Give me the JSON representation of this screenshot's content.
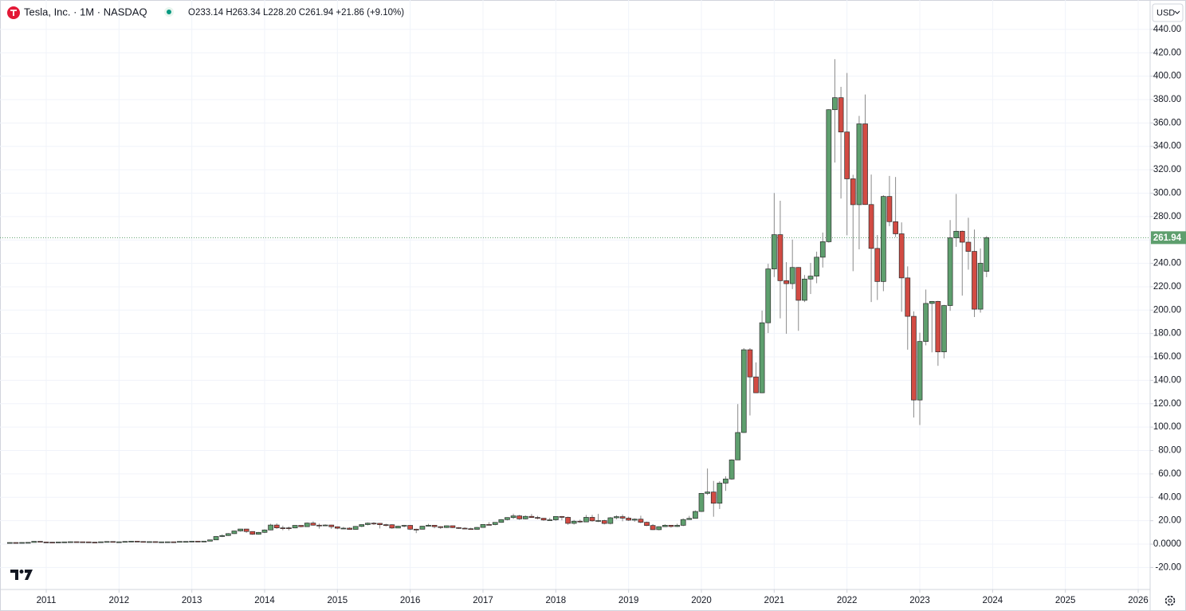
{
  "chart_data": {
    "type": "candlestick",
    "title": "Tesla, Inc. · 1M · NASDAQ",
    "ohlc_legend": "O233.14 H263.34 L228.20 C261.94 +21.86 (+9.10%)",
    "currency": "USD",
    "up_color": "#5e9f6e",
    "down_color": "#d24b43",
    "grid": true,
    "xlim": [
      2010.365,
      2026.164
    ],
    "xticks": [
      2011,
      2012,
      2013,
      2014,
      2015,
      2016,
      2017,
      2018,
      2019,
      2020,
      2021,
      2022,
      2023,
      2024,
      2025,
      2026
    ],
    "ylim": [
      -38.8,
      465.1
    ],
    "yticks": [
      {
        "value": -20,
        "label": "-20.00"
      },
      {
        "value": 0,
        "label": "0.0000"
      },
      {
        "value": 20,
        "label": "20.00"
      },
      {
        "value": 40,
        "label": "40.00"
      },
      {
        "value": 60,
        "label": "60.00"
      },
      {
        "value": 80,
        "label": "80.00"
      },
      {
        "value": 100,
        "label": "100.00"
      },
      {
        "value": 120,
        "label": "120.00"
      },
      {
        "value": 140,
        "label": "140.00"
      },
      {
        "value": 160,
        "label": "160.00"
      },
      {
        "value": 180,
        "label": "180.00"
      },
      {
        "value": 200,
        "label": "200.00"
      },
      {
        "value": 220,
        "label": "220.00"
      },
      {
        "value": 240,
        "label": "240.00"
      },
      {
        "value": 260,
        "label": "260.00"
      },
      {
        "value": 280,
        "label": "280.00"
      },
      {
        "value": 300,
        "label": "300.00"
      },
      {
        "value": 320,
        "label": "320.00"
      },
      {
        "value": 340,
        "label": "340.00"
      },
      {
        "value": 360,
        "label": "360.00"
      },
      {
        "value": 380,
        "label": "380.00"
      },
      {
        "value": 400,
        "label": "400.00"
      },
      {
        "value": 420,
        "label": "420.00"
      },
      {
        "value": 440,
        "label": "440.00"
      }
    ],
    "x": [
      2010.5,
      2010.583,
      2010.667,
      2010.75,
      2010.833,
      2010.917,
      2011,
      2011.083,
      2011.167,
      2011.25,
      2011.333,
      2011.417,
      2011.5,
      2011.583,
      2011.667,
      2011.75,
      2011.833,
      2011.917,
      2012,
      2012.083,
      2012.167,
      2012.25,
      2012.333,
      2012.417,
      2012.5,
      2012.583,
      2012.667,
      2012.75,
      2012.833,
      2012.917,
      2013,
      2013.083,
      2013.167,
      2013.25,
      2013.333,
      2013.417,
      2013.5,
      2013.583,
      2013.667,
      2013.75,
      2013.833,
      2013.917,
      2014,
      2014.083,
      2014.167,
      2014.25,
      2014.333,
      2014.417,
      2014.5,
      2014.583,
      2014.667,
      2014.75,
      2014.833,
      2014.917,
      2015,
      2015.083,
      2015.167,
      2015.25,
      2015.333,
      2015.417,
      2015.5,
      2015.583,
      2015.667,
      2015.75,
      2015.833,
      2015.917,
      2016,
      2016.083,
      2016.167,
      2016.25,
      2016.333,
      2016.417,
      2016.5,
      2016.583,
      2016.667,
      2016.75,
      2016.833,
      2016.917,
      2017,
      2017.083,
      2017.167,
      2017.25,
      2017.333,
      2017.417,
      2017.5,
      2017.583,
      2017.667,
      2017.75,
      2017.833,
      2017.917,
      2018,
      2018.083,
      2018.167,
      2018.25,
      2018.333,
      2018.417,
      2018.5,
      2018.583,
      2018.667,
      2018.75,
      2018.833,
      2018.917,
      2019,
      2019.083,
      2019.167,
      2019.25,
      2019.333,
      2019.417,
      2019.5,
      2019.583,
      2019.667,
      2019.75,
      2019.833,
      2019.917,
      2020,
      2020.083,
      2020.167,
      2020.25,
      2020.333,
      2020.417,
      2020.5,
      2020.583,
      2020.667,
      2020.75,
      2020.833,
      2020.917,
      2021,
      2021.083,
      2021.167,
      2021.25,
      2021.333,
      2021.417,
      2021.5,
      2021.583,
      2021.667,
      2021.75,
      2021.833,
      2021.917,
      2022,
      2022.083,
      2022.167,
      2022.25,
      2022.333,
      2022.417,
      2022.5,
      2022.583,
      2022.667,
      2022.75,
      2022.833,
      2022.917,
      2023,
      2023.083,
      2023.167,
      2023.25,
      2023.333,
      2023.417,
      2023.5,
      2023.583,
      2023.667,
      2023.75,
      2023.833,
      2023.917
    ],
    "open": [
      1.27,
      1.33,
      1.3,
      1.37,
      1.45,
      2.34,
      1.78,
      1.63,
      1.59,
      1.79,
      1.88,
      2.02,
      1.95,
      1.89,
      1.65,
      1.63,
      1.95,
      2.19,
      1.9,
      1.94,
      2.25,
      2.48,
      2.2,
      1.98,
      2.09,
      1.86,
      1.91,
      1.95,
      1.9,
      2.25,
      2.26,
      2.5,
      2.31,
      2.53,
      3.6,
      6.5,
      7.31,
      8.95,
      11.24,
      12.89,
      10.77,
      8.42,
      10.03,
      12.09,
      16.29,
      13.89,
      13.88,
      13.81,
      16.0,
      14.91,
      17.98,
      16.18,
      16.11,
      16.3,
      14.83,
      13.57,
      13.63,
      12.58,
      15.12,
      16.69,
      17.89,
      17.74,
      16.6,
      16.55,
      13.75,
      15.32,
      16.0,
      12.75,
      12.72,
      15.32,
      16.09,
      14.91,
      14.15,
      15.68,
      14.1,
      13.6,
      13.16,
      12.61,
      14.25,
      16.79,
      16.69,
      18.55,
      20.94,
      22.69,
      24.13,
      21.56,
      23.7,
      22.74,
      22.1,
      20.59,
      20.76,
      23.62,
      22.87,
      17.74,
      19.6,
      18.97,
      22.86,
      19.88,
      20.11,
      17.65,
      22.49,
      23.47,
      22.19,
      20.47,
      21.33,
      18.66,
      15.91,
      12.34,
      14.9,
      16.11,
      15.04,
      16.06,
      20.99,
      21.99,
      27.89,
      43.37,
      44.53,
      34.93,
      52.13,
      55.67,
      71.99,
      95.38,
      166.11,
      142.9,
      129.35,
      189.2,
      235.22,
      264.51,
      225.17,
      222.64,
      236.48,
      208.41,
      226.57,
      229.07,
      245.24,
      258.49,
      371.33,
      381.59,
      352.26,
      312.24,
      290.14,
      359.2,
      290.25,
      252.75,
      224.47,
      297.15,
      275.61,
      265.25,
      227.54,
      194.7,
      123.18,
      173.22,
      205.71,
      207.46,
      164.31,
      203.93,
      261.77,
      267.43,
      258.08,
      250.22,
      200.84,
      233.14
    ],
    "high": [
      1.47,
      1.39,
      1.44,
      1.49,
      2.43,
      2.39,
      1.87,
      1.67,
      1.88,
      1.98,
      2.14,
      2.05,
      2.02,
      1.93,
      1.83,
      2.05,
      2.3,
      2.24,
      2.15,
      2.47,
      2.6,
      2.51,
      2.32,
      2.2,
      2.25,
      2.04,
      2.04,
      2.06,
      2.32,
      2.38,
      2.68,
      2.62,
      2.66,
      3.7,
      6.93,
      8.3,
      9.44,
      11.44,
      12.96,
      12.99,
      10.93,
      10.34,
      12.66,
      17.4,
      17.68,
      15.75,
      14.95,
      16.23,
      15.88,
      18.49,
      19.43,
      17.51,
      16.86,
      16.53,
      15.09,
      14.7,
      14.4,
      15.44,
      16.75,
      18.5,
      18.77,
      17.98,
      17.38,
      16.97,
      15.74,
      16.41,
      16.28,
      13.14,
      15.5,
      17.31,
      16.37,
      15.27,
      15.89,
      15.75,
      14.54,
      14.38,
      13.98,
      14.58,
      17.02,
      18.79,
      18.72,
      21.32,
      22.91,
      25.97,
      24.98,
      24.49,
      25.74,
      24.1,
      22.3,
      22.47,
      23.83,
      23.99,
      23.49,
      20.64,
      20.89,
      24.92,
      24.98,
      25.83,
      20.82,
      23.13,
      24.66,
      25.3,
      23.47,
      21.98,
      24.25,
      19.19,
      17.07,
      15.24,
      17.0,
      16.27,
      17.46,
      22.0,
      24.13,
      28.81,
      43.5,
      64.6,
      54.0,
      53.8,
      58.0,
      72.5,
      119.7,
      167.5,
      167.5,
      155.3,
      199.6,
      239.6,
      300.1,
      293.5,
      241.0,
      260.3,
      236.8,
      230.0,
      240.4,
      250.0,
      266.3,
      371.7,
      414.5,
      390.9,
      402.7,
      315.7,
      366.0,
      384.3,
      315.9,
      264.2,
      298.3,
      314.7,
      313.8,
      275.0,
      237.4,
      198.9,
      180.7,
      217.6,
      207.8,
      208.0,
      204.5,
      276.99,
      299.3,
      268.0,
      278.98,
      268.9,
      252.75,
      263.34
    ],
    "low": [
      1.05,
      1.19,
      1.25,
      1.33,
      1.43,
      1.69,
      1.55,
      1.49,
      1.5,
      1.69,
      1.76,
      1.8,
      1.81,
      1.5,
      1.5,
      1.53,
      1.84,
      1.78,
      1.51,
      1.91,
      2.12,
      2.1,
      1.85,
      1.8,
      1.78,
      1.79,
      1.83,
      1.81,
      1.85,
      2.13,
      2.19,
      2.18,
      2.22,
      2.41,
      3.55,
      5.98,
      7.0,
      8.64,
      10.69,
      9.66,
      7.89,
      8.07,
      9.4,
      11.81,
      13.06,
      11.85,
      11.72,
      13.53,
      14.33,
      14.7,
      15.79,
      13.2,
      15.38,
      13.01,
      12.75,
      12.91,
      12.31,
      12.55,
      14.5,
      16.0,
      16.31,
      13.36,
      15.05,
      13.03,
      13.64,
      14.3,
      12.0,
      9.4,
      12.67,
      15.0,
      13.51,
      12.95,
      13.81,
      13.66,
      13.03,
      13.05,
      12.6,
      12.51,
      14.1,
      16.5,
      16.1,
      18.3,
      20.26,
      21.43,
      20.74,
      21.13,
      22.38,
      21.2,
      19.88,
      20.25,
      19.9,
      20.33,
      16.55,
      16.71,
      18.12,
      18.97,
      19.2,
      18.83,
      16.83,
      16.87,
      21.17,
      19.51,
      19.75,
      19.14,
      17.79,
      15.4,
      12.07,
      11.8,
      14.88,
      14.07,
      14.6,
      15.33,
      20.74,
      21.86,
      27.5,
      42.0,
      23.4,
      30.0,
      45.5,
      55.0,
      71.9,
      95.0,
      109.96,
      129.1,
      129.0,
      180.4,
      228.3,
      193.0,
      179.8,
      218.0,
      182.3,
      206.9,
      213.8,
      223.0,
      236.4,
      257.7,
      326.2,
      295.4,
      264.0,
      233.3,
      252.0,
      290.0,
      206.9,
      208.7,
      216.2,
      271.8,
      262.5,
      198.6,
      166.2,
      108.2,
      101.8,
      169.9,
      163.9,
      152.4,
      158.8,
      199.4,
      254.1,
      212.4,
      234.6,
      194.1,
      197.85,
      228.2
    ],
    "close": [
      1.33,
      1.3,
      1.37,
      1.45,
      2.34,
      1.78,
      1.63,
      1.59,
      1.79,
      1.88,
      2.02,
      1.95,
      1.89,
      1.65,
      1.63,
      1.95,
      2.19,
      1.9,
      1.94,
      2.25,
      2.48,
      2.2,
      1.98,
      2.09,
      1.86,
      1.91,
      1.95,
      1.9,
      2.25,
      2.26,
      2.5,
      2.31,
      2.53,
      3.6,
      6.5,
      7.31,
      8.95,
      11.24,
      12.89,
      10.77,
      8.42,
      10.03,
      12.09,
      16.29,
      13.89,
      13.88,
      13.81,
      16.0,
      14.91,
      17.98,
      16.18,
      16.11,
      16.3,
      14.83,
      13.57,
      13.63,
      12.58,
      15.12,
      16.69,
      17.89,
      17.74,
      16.6,
      16.55,
      13.75,
      15.32,
      16.0,
      12.75,
      12.72,
      15.32,
      16.09,
      14.91,
      14.15,
      15.68,
      14.1,
      13.6,
      13.16,
      12.61,
      14.25,
      16.79,
      16.69,
      18.55,
      20.94,
      22.69,
      24.13,
      21.56,
      23.7,
      22.74,
      22.1,
      20.59,
      20.76,
      23.62,
      22.87,
      17.74,
      19.6,
      18.97,
      22.86,
      19.88,
      20.11,
      17.65,
      22.49,
      23.47,
      22.19,
      20.47,
      21.33,
      18.66,
      15.91,
      12.34,
      14.9,
      16.11,
      15.04,
      16.06,
      20.99,
      21.99,
      27.89,
      43.37,
      44.53,
      34.93,
      52.13,
      55.67,
      71.99,
      95.38,
      166.11,
      142.9,
      129.35,
      189.2,
      235.22,
      264.51,
      225.17,
      222.64,
      236.48,
      208.41,
      226.57,
      229.07,
      245.24,
      258.49,
      371.33,
      381.59,
      352.26,
      312.24,
      290.14,
      359.2,
      290.25,
      252.75,
      224.47,
      297.15,
      275.61,
      265.25,
      227.54,
      194.7,
      123.18,
      173.22,
      205.71,
      207.46,
      164.31,
      203.93,
      261.77,
      267.43,
      258.08,
      250.22,
      200.84,
      240.08,
      261.94
    ]
  }
}
